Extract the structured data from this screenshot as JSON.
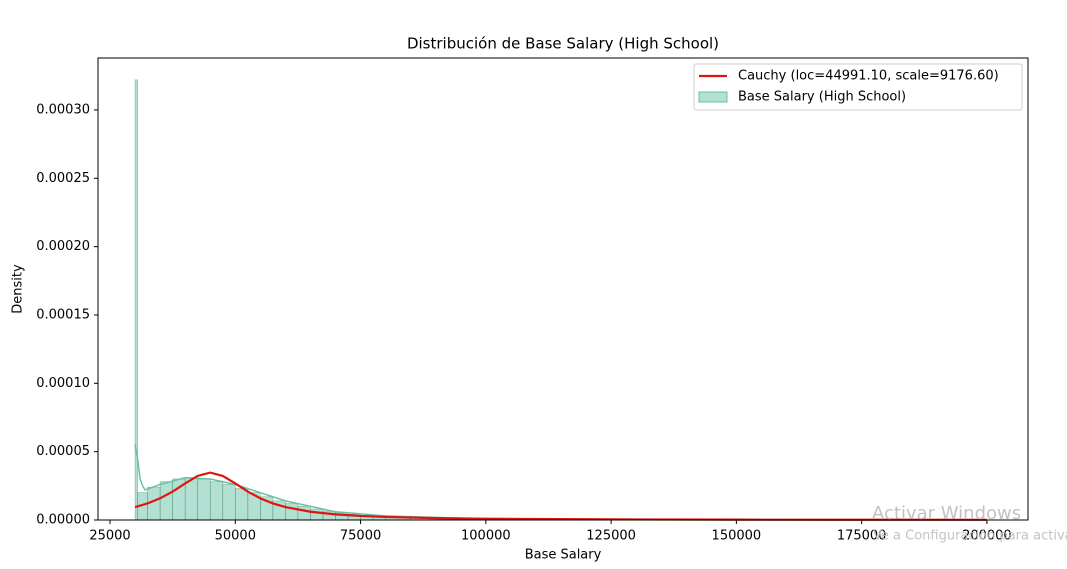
{
  "chart_data": {
    "type": "histogram",
    "title": "Distribución de Base Salary (High School)",
    "x_label": "Base Salary",
    "y_label": "Density",
    "name": "Base Salary (High School)",
    "color": "#66c2a5",
    "bins": [
      30000,
      30500,
      32500,
      35000,
      37500,
      40000,
      42500,
      45000,
      47500,
      50000,
      52500,
      55000,
      57500,
      60000,
      62500,
      65000,
      67500,
      70000,
      72500,
      75000,
      77500,
      80000,
      85000,
      90000,
      95000,
      100000,
      110000,
      120000,
      140000,
      170000,
      200000
    ],
    "values": [
      0.000322,
      2e-05,
      2.4e-05,
      2.8e-05,
      3e-05,
      3.1e-05,
      3e-05,
      2.8e-05,
      2.6e-05,
      2.3e-05,
      2e-05,
      1.7e-05,
      1.4e-05,
      1.2e-05,
      1e-05,
      8e-06,
      6.5e-06,
      5.2e-06,
      4.2e-06,
      3.4e-06,
      2.7e-06,
      1.9e-06,
      1.3e-06,
      9e-07,
      6e-07,
      4e-07,
      2e-07,
      1e-07,
      4e-08,
      2e-08
    ],
    "kde": {
      "color": "#66c2a5",
      "x": [
        30000,
        30500,
        31000,
        31500,
        32000,
        35000,
        40000,
        45000,
        50000,
        55000,
        60000,
        70000,
        80000,
        100000,
        150000,
        200000
      ],
      "values": [
        5.5e-05,
        4.5e-05,
        3e-05,
        2.5e-05,
        2.2e-05,
        2.6e-05,
        3.1e-05,
        3e-05,
        2.6e-05,
        2e-05,
        1.4e-05,
        6e-06,
        3e-06,
        8e-07,
        1e-07,
        2e-08
      ]
    },
    "fit": {
      "name": "Cauchy (loc=44991.10, scale=9176.60)",
      "color": "#e0140f",
      "x": [
        30000,
        32500,
        35000,
        37500,
        40000,
        42500,
        45000,
        47500,
        50000,
        52500,
        55000,
        57500,
        60000,
        65000,
        70000,
        75000,
        80000,
        90000,
        100000,
        125000,
        150000,
        175000,
        200000
      ],
      "values": [
        9.455e-06,
        1.216e-05,
        1.587e-05,
        2.082e-05,
        2.677e-05,
        3.231e-05,
        3.469e-05,
        3.228e-05,
        2.673e-05,
        2.078e-05,
        1.584e-05,
        1.214e-05,
        9.44e-06,
        6.03e-06,
        4.12e-06,
        2.97e-06,
        2.23e-06,
        1.384e-06,
        9.39e-07,
        4.5e-07,
        2.63e-07,
        1.72e-07,
        1.21e-07
      ]
    },
    "xlim": [
      22600,
      208200
    ],
    "ylim": [
      0,
      0.000338
    ],
    "xticks": [
      25000,
      50000,
      75000,
      100000,
      125000,
      150000,
      175000,
      200000
    ],
    "yticks": [
      {
        "value": 0,
        "label": "0.00000"
      },
      {
        "value": 5e-05,
        "label": "0.00005"
      },
      {
        "value": 0.0001,
        "label": "0.00010"
      },
      {
        "value": 0.00015,
        "label": "0.00015"
      },
      {
        "value": 0.0002,
        "label": "0.00020"
      },
      {
        "value": 0.00025,
        "label": "0.00025"
      },
      {
        "value": 0.0003,
        "label": "0.00030"
      }
    ],
    "legend": "upper right"
  },
  "watermark": {
    "title": "Activar Windows",
    "subtitle": "Ve a Configuración para activar Windows"
  }
}
